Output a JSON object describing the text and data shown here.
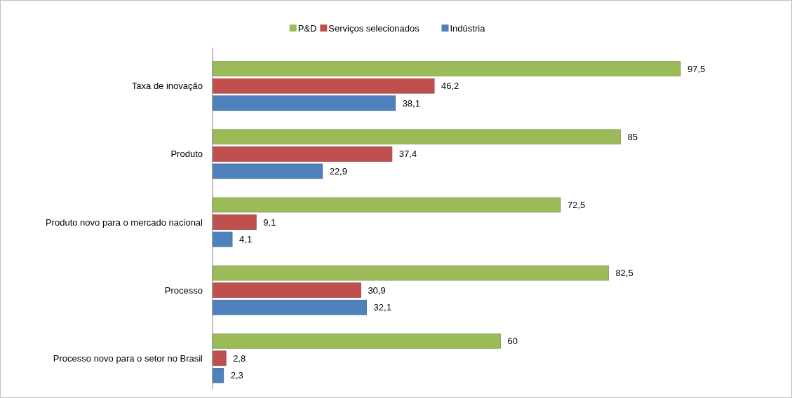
{
  "chart_data": {
    "type": "bar",
    "orientation": "horizontal",
    "legend": "top",
    "categories": [
      "Taxa de inovação",
      "Produto",
      "Produto novo para o mercado nacional",
      "Processo",
      "Processo novo para o setor no Brasil"
    ],
    "series": [
      {
        "name": "P&D",
        "color": "#9bbb59",
        "values": [
          97.5,
          85,
          72.5,
          82.5,
          60
        ],
        "value_labels": [
          "97,5",
          "85",
          "72,5",
          "82,5",
          "60"
        ]
      },
      {
        "name": "Serviços selecionados",
        "color": "#c0504d",
        "values": [
          46.2,
          37.4,
          9.1,
          30.9,
          2.8
        ],
        "value_labels": [
          "46,2",
          "37,4",
          "9,1",
          "30,9",
          "2,8"
        ]
      },
      {
        "name": "Indústria",
        "color": "#4f81bd",
        "values": [
          38.1,
          22.9,
          4.1,
          32.1,
          2.3
        ],
        "value_labels": [
          "38,1",
          "22,9",
          "4,1",
          "32,1",
          "2,3"
        ]
      }
    ]
  }
}
